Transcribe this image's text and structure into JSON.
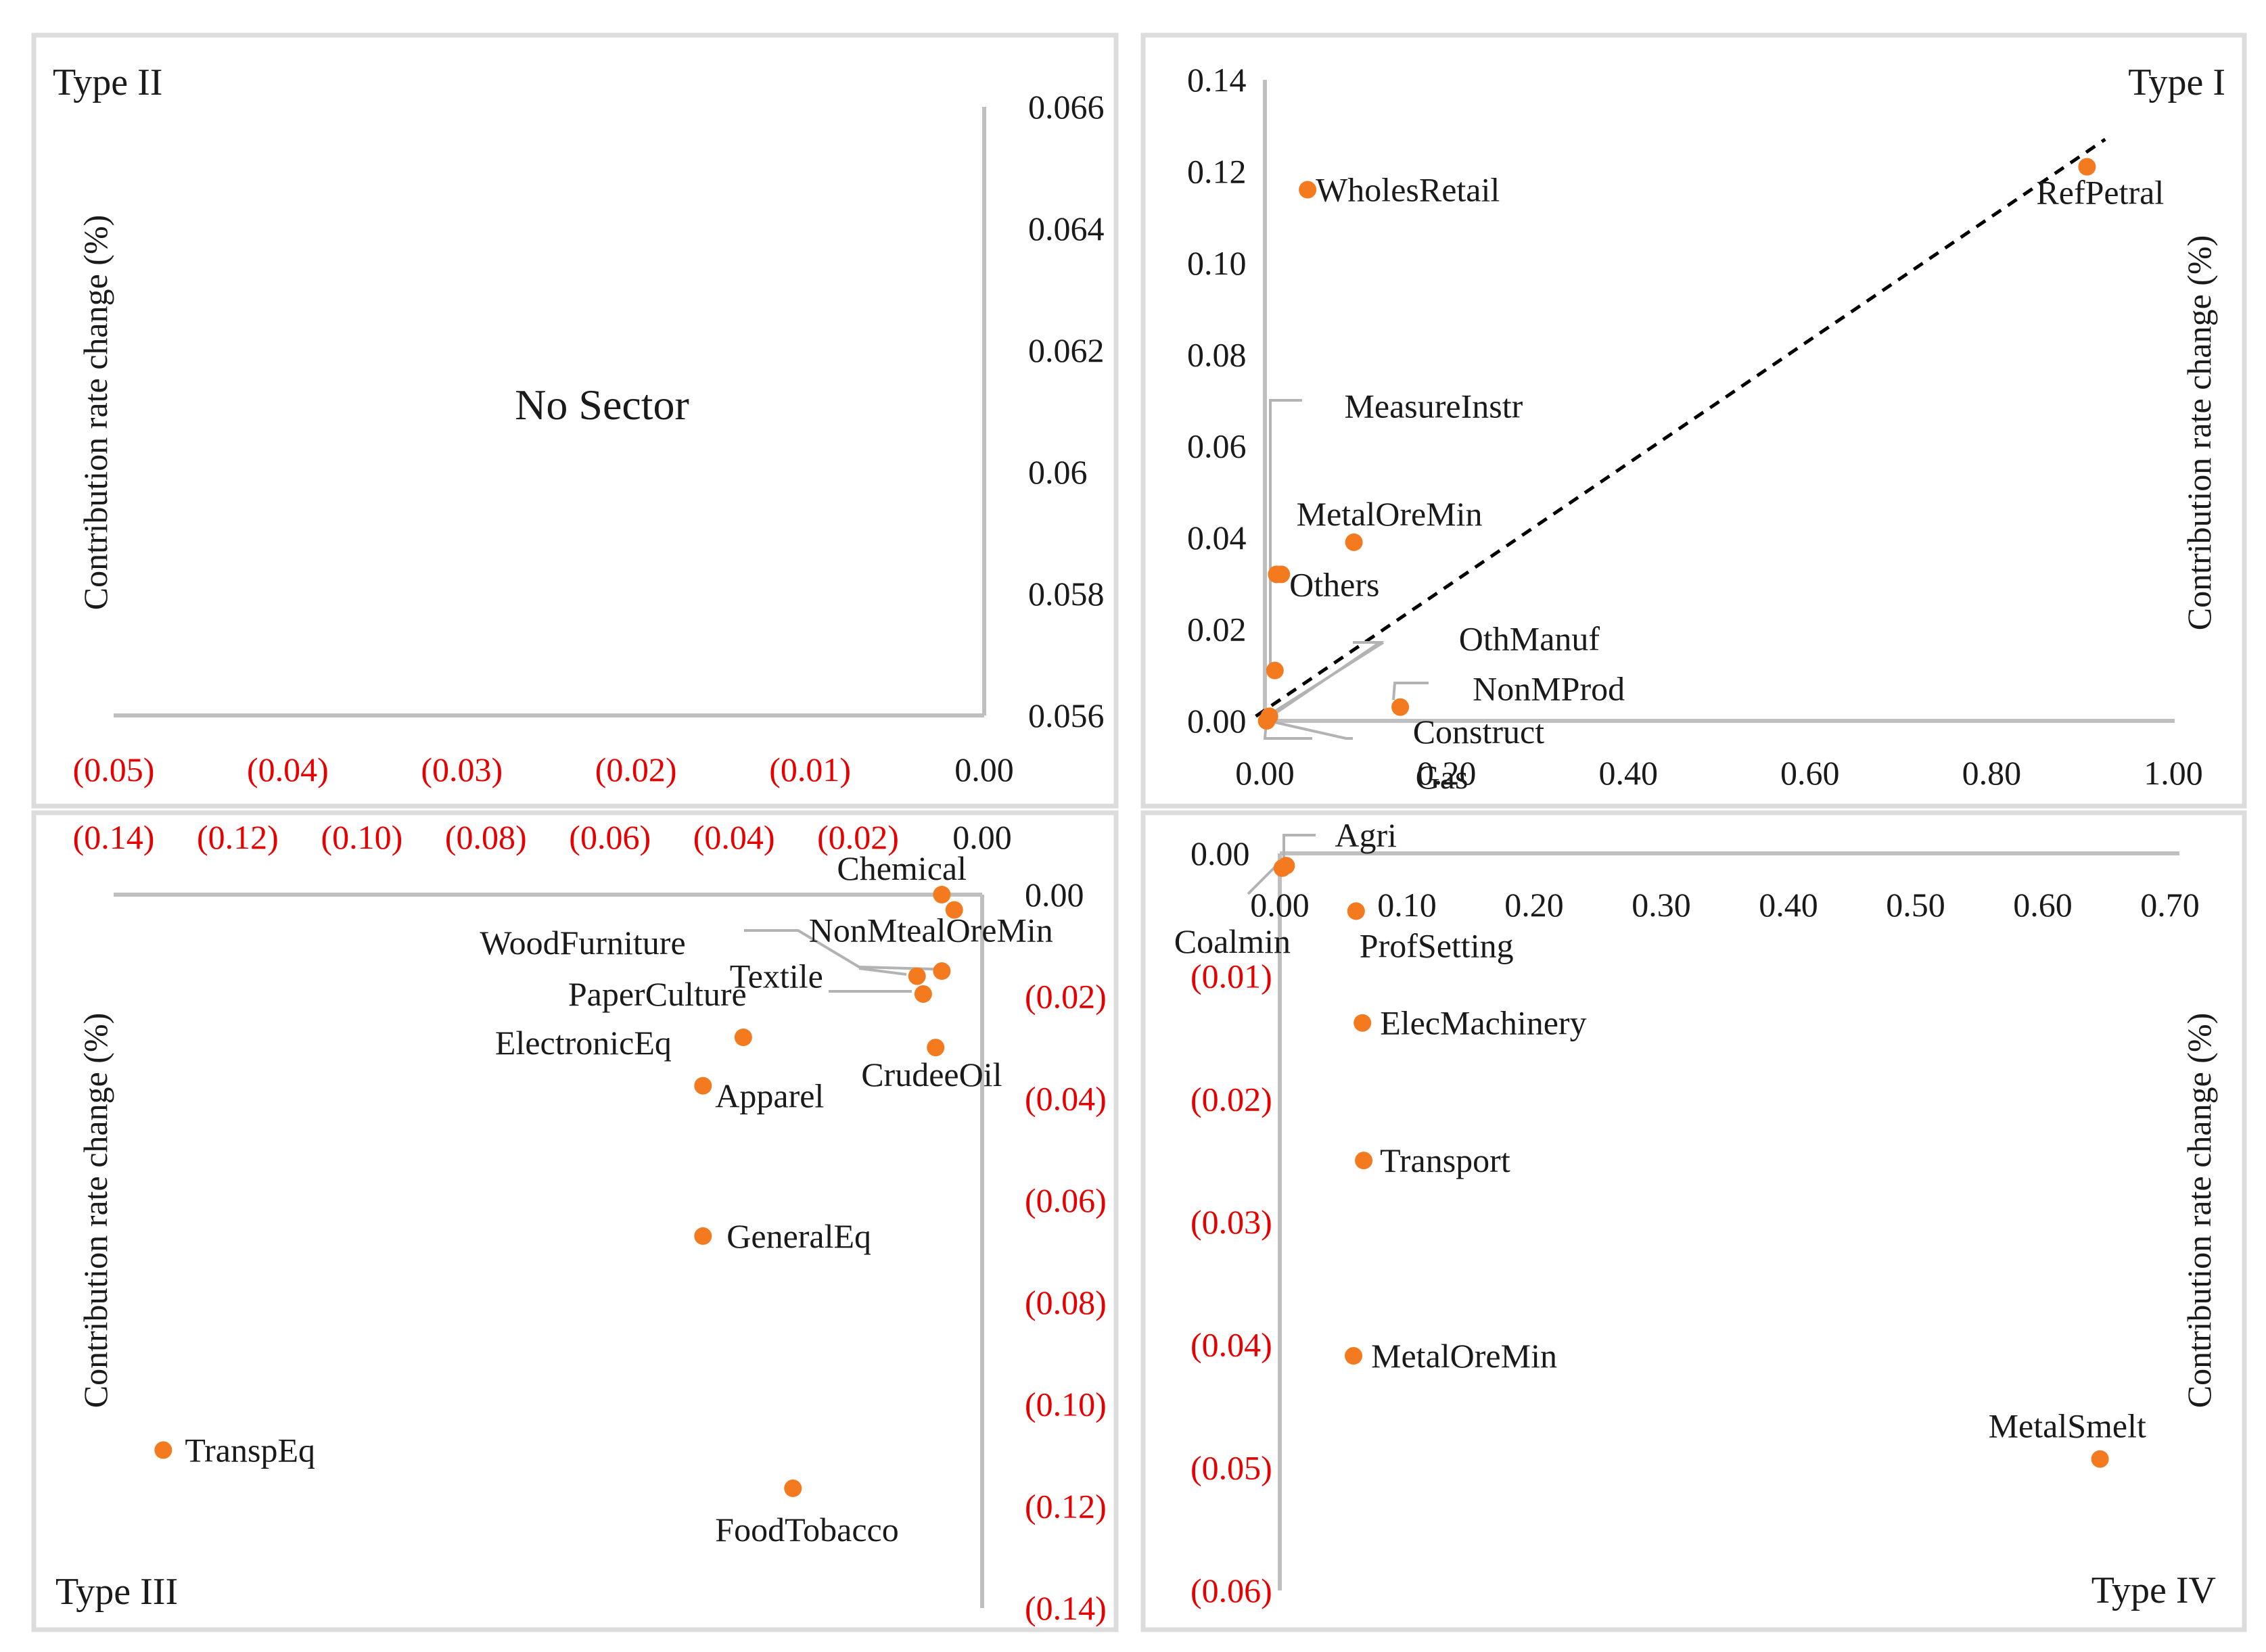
{
  "colors": {
    "point": "#f47a20",
    "axis": "#bfbfbf",
    "leader": "#b3b3b3",
    "negative_tick": "#e60000",
    "panel_border": "#d9d9d9",
    "trend": "#000000"
  },
  "chart_data": [
    {
      "id": "type2",
      "type": "scatter",
      "title": "Type II",
      "ylabel": "Contribution rate change (%)",
      "xlim": [
        -0.05,
        0.0
      ],
      "ylim": [
        0.056,
        0.066
      ],
      "x_ticks": [
        "(0.05)",
        "(0.04)",
        "(0.03)",
        "(0.02)",
        "(0.01)",
        "0.00"
      ],
      "y_ticks": [
        "0.066",
        "0.064",
        "0.062",
        "0.06",
        "0.058",
        "0.056"
      ],
      "annotation": "No Sector",
      "points": []
    },
    {
      "id": "type1",
      "type": "scatter",
      "title": "Type I",
      "ylabel": "Contribution rate change (%)",
      "xlim": [
        0.0,
        1.0
      ],
      "ylim": [
        0.0,
        0.14
      ],
      "x_ticks": [
        "0.00",
        "0.20",
        "0.40",
        "0.60",
        "0.80",
        "1.00"
      ],
      "y_ticks": [
        "0.14",
        "0.12",
        "0.10",
        "0.08",
        "0.06",
        "0.04",
        "0.02",
        "0.00"
      ],
      "trendline": {
        "style": "dashed",
        "from": [
          -0.01,
          0.001
        ],
        "to": [
          0.925,
          0.127
        ]
      },
      "points": [
        {
          "label": "RefPetral",
          "x": 0.905,
          "y": 0.121
        },
        {
          "label": "WholesRetail",
          "x": 0.047,
          "y": 0.116
        },
        {
          "label": "MeasureInstr",
          "x": 0.013,
          "y": 0.032
        },
        {
          "label": "MetalOreMin",
          "x": 0.098,
          "y": 0.039
        },
        {
          "label": "Others",
          "x": 0.018,
          "y": 0.032
        },
        {
          "label": "OthManuf",
          "x": 0.011,
          "y": 0.011
        },
        {
          "label": "NonMProd",
          "x": 0.149,
          "y": 0.003
        },
        {
          "label": "Construct",
          "x": 0.005,
          "y": 0.001
        },
        {
          "label": "Gas",
          "x": 0.002,
          "y": 0.0
        }
      ]
    },
    {
      "id": "type3",
      "type": "scatter",
      "title": "Type III",
      "ylabel": "Contribution rate change (%)",
      "xlim": [
        -0.14,
        0.0
      ],
      "ylim": [
        -0.14,
        0.0
      ],
      "x_ticks": [
        "(0.14)",
        "(0.12)",
        "(0.10)",
        "(0.08)",
        "(0.06)",
        "(0.04)",
        "(0.02)",
        "0.00"
      ],
      "y_ticks": [
        "0.00",
        "(0.02)",
        "(0.04)",
        "(0.06)",
        "(0.08)",
        "(0.10)",
        "(0.12)",
        "(0.14)"
      ],
      "points": [
        {
          "label": "Chemical",
          "x": -0.0065,
          "y": 0.0
        },
        {
          "label": "NonMtealOreMin",
          "x": -0.0045,
          "y": -0.003
        },
        {
          "label": "WoodFurniture",
          "x": -0.0065,
          "y": -0.015
        },
        {
          "label": "Textile",
          "x": -0.0105,
          "y": -0.016
        },
        {
          "label": "PaperCulture",
          "x": -0.0095,
          "y": -0.0195
        },
        {
          "label": "ElectronicEq",
          "x": -0.0385,
          "y": -0.028
        },
        {
          "label": "CrudeeOil",
          "x": -0.0075,
          "y": -0.03
        },
        {
          "label": "Apparel",
          "x": -0.045,
          "y": -0.0375
        },
        {
          "label": "GeneralEq",
          "x": -0.045,
          "y": -0.067
        },
        {
          "label": "TranspEq",
          "x": -0.132,
          "y": -0.109
        },
        {
          "label": "FoodTobacco",
          "x": -0.0305,
          "y": -0.1165
        }
      ]
    },
    {
      "id": "type4",
      "type": "scatter",
      "title": "Type IV",
      "ylabel": "Contribution rate change (%)",
      "xlim": [
        0.0,
        0.7
      ],
      "ylim": [
        -0.06,
        0.0
      ],
      "x_ticks": [
        "0.00",
        "0.10",
        "0.20",
        "0.30",
        "0.40",
        "0.50",
        "0.60",
        "0.70"
      ],
      "y_ticks": [
        "0.00",
        "(0.01)",
        "(0.02)",
        "(0.03)",
        "(0.04)",
        "(0.05)",
        "(0.06)"
      ],
      "points": [
        {
          "label": "Agri",
          "x": 0.005,
          "y": -0.001
        },
        {
          "label": "Coalmin",
          "x": 0.002,
          "y": -0.0012
        },
        {
          "label": "ProfSetting",
          "x": 0.06,
          "y": -0.0047
        },
        {
          "label": "ElecMachinery",
          "x": 0.065,
          "y": -0.0138
        },
        {
          "label": "Transport",
          "x": 0.066,
          "y": -0.025
        },
        {
          "label": "MetalOreMin",
          "x": 0.058,
          "y": -0.0409
        },
        {
          "label": "MetalSmelt",
          "x": 0.645,
          "y": -0.0493
        }
      ]
    }
  ]
}
